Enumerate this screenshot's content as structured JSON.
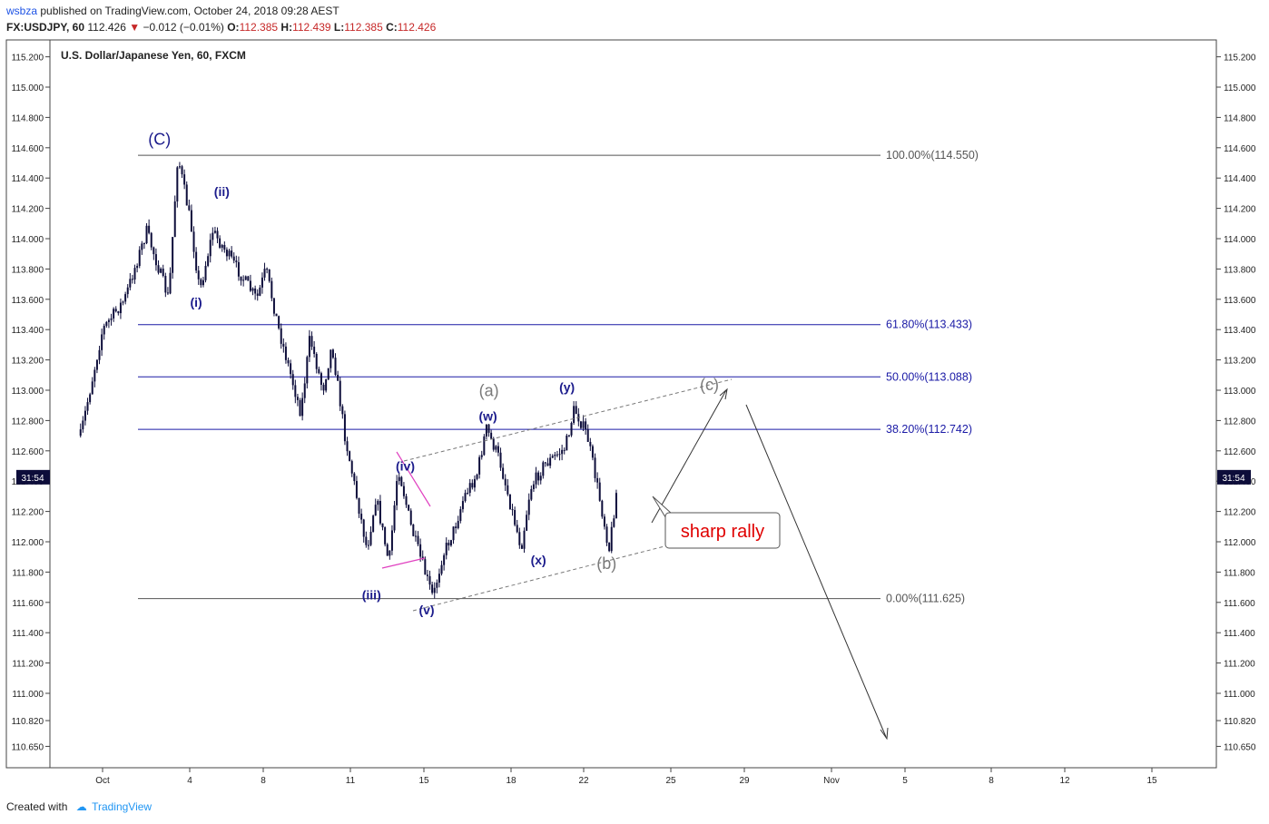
{
  "header": {
    "publisher": "wsbza",
    "published_text": "published on TradingView.com, October 24, 2018 09:28 AEST",
    "symbol": "FX:USDJPY, 60",
    "last": "112.426",
    "change": "−0.012 (−0.01%)",
    "open_label": "O:",
    "open": "112.385",
    "high_label": "H:",
    "high": "112.439",
    "low_label": "L:",
    "low": "112.385",
    "close_label": "C:",
    "close": "112.426"
  },
  "footer": {
    "created_with": "Created with",
    "brand": "TradingView"
  },
  "colors": {
    "candle": "#0d0d3a",
    "fib_grey": "#555555",
    "fib_blue": "#1a1aa6",
    "label_blue": "#1c1c8c",
    "label_grey": "#7a7a7a",
    "triangle": "#e040c0",
    "callout_red": "#e00000"
  },
  "chart_data": {
    "type": "candlestick",
    "title": "U.S. Dollar/Japanese Yen, 60, FXCM",
    "ylim": [
      110.55,
      115.35
    ],
    "y_ticks": [
      "115.200",
      "115.000",
      "114.800",
      "114.600",
      "114.400",
      "114.200",
      "114.000",
      "113.800",
      "113.600",
      "113.400",
      "113.200",
      "113.000",
      "112.800",
      "112.600",
      "112.400",
      "112.200",
      "112.000",
      "111.800",
      "111.600",
      "111.400",
      "111.200",
      "111.000",
      "110.820",
      "110.650"
    ],
    "x_ticks": [
      "Oct",
      "4",
      "8",
      "11",
      "15",
      "18",
      "22",
      "25",
      "29",
      "Nov",
      "5",
      "8",
      "12",
      "15"
    ],
    "price_tag": "31:54",
    "price_tag_value": 112.426,
    "swing_points": [
      {
        "x": "Sep 30",
        "y": 112.7
      },
      {
        "x": "Oct 1",
        "y": 113.4
      },
      {
        "x": "Oct 2",
        "y": 113.6
      },
      {
        "x": "Oct 3",
        "y": 114.05
      },
      {
        "x": "Oct 4",
        "y": 113.6
      },
      {
        "x": "Oct 4",
        "y": 114.55
      },
      {
        "x": "Oct 5",
        "y": 114.1
      },
      {
        "x": "Oct 5",
        "y": 113.65
      },
      {
        "x": "Oct 6",
        "y": 114.05
      },
      {
        "x": "Oct 8",
        "y": 113.6
      },
      {
        "x": "Oct 8",
        "y": 113.8
      },
      {
        "x": "Oct 9",
        "y": 113.4
      },
      {
        "x": "Oct 10",
        "y": 112.85
      },
      {
        "x": "Oct 10",
        "y": 113.35
      },
      {
        "x": "Oct 11",
        "y": 113.0
      },
      {
        "x": "Oct 11",
        "y": 113.3
      },
      {
        "x": "Oct 12",
        "y": 112.7
      },
      {
        "x": "Oct 13",
        "y": 111.95
      },
      {
        "x": "Oct 13",
        "y": 112.3
      },
      {
        "x": "Oct 14",
        "y": 111.85
      },
      {
        "x": "Oct 14",
        "y": 112.5
      },
      {
        "x": "Oct 15",
        "y": 112.1
      },
      {
        "x": "Oct 15",
        "y": 111.9
      },
      {
        "x": "Oct 16",
        "y": 111.63
      },
      {
        "x": "Oct 16",
        "y": 111.9
      },
      {
        "x": "Oct 17",
        "y": 112.1
      },
      {
        "x": "Oct 17",
        "y": 112.3
      },
      {
        "x": "Oct 18",
        "y": 112.45
      },
      {
        "x": "Oct 18",
        "y": 112.75
      },
      {
        "x": "Oct 19",
        "y": 112.55
      },
      {
        "x": "Oct 20",
        "y": 111.96
      },
      {
        "x": "Oct 20",
        "y": 112.35
      },
      {
        "x": "Oct 21",
        "y": 112.5
      },
      {
        "x": "Oct 22",
        "y": 112.62
      },
      {
        "x": "Oct 22",
        "y": 112.88
      },
      {
        "x": "Oct 23",
        "y": 112.7
      },
      {
        "x": "Oct 23",
        "y": 112.4
      },
      {
        "x": "Oct 24",
        "y": 111.95
      },
      {
        "x": "Oct 24",
        "y": 112.43
      }
    ],
    "fib_levels": [
      {
        "label": "100.00%(114.550)",
        "value": 114.55,
        "color": "grey"
      },
      {
        "label": "61.80%(113.433)",
        "value": 113.433,
        "color": "blue"
      },
      {
        "label": "50.00%(113.088)",
        "value": 113.088,
        "color": "blue"
      },
      {
        "label": "38.20%(112.742)",
        "value": 112.742,
        "color": "blue"
      },
      {
        "label": "0.00%(111.625)",
        "value": 111.625,
        "color": "grey"
      }
    ],
    "wave_labels": [
      {
        "text": "(C)",
        "x": "Oct 4",
        "y": 114.62,
        "color": "blue"
      },
      {
        "text": "(i)",
        "x": "Oct 5",
        "y": 113.55,
        "color": "blue"
      },
      {
        "text": "(ii)",
        "x": "Oct 6",
        "y": 114.28,
        "color": "blue"
      },
      {
        "text": "(iii)",
        "x": "Oct 13",
        "y": 111.62,
        "color": "blue"
      },
      {
        "text": "(iv)",
        "x": "Oct 14",
        "y": 112.47,
        "color": "blue"
      },
      {
        "text": "(v)",
        "x": "Oct 16",
        "y": 111.52,
        "color": "blue"
      },
      {
        "text": "(a)",
        "x": "Oct 18",
        "y": 112.96,
        "color": "grey"
      },
      {
        "text": "(w)",
        "x": "Oct 18",
        "y": 112.8,
        "color": "blue"
      },
      {
        "text": "(x)",
        "x": "Oct 20",
        "y": 111.85,
        "color": "blue"
      },
      {
        "text": "(y)",
        "x": "Oct 22",
        "y": 112.99,
        "color": "blue"
      },
      {
        "text": "(b)",
        "x": "Oct 24",
        "y": 111.82,
        "color": "grey"
      },
      {
        "text": "(c)",
        "x": "Oct 29",
        "y": 113.0,
        "color": "grey"
      }
    ],
    "annotations": {
      "callout": "sharp rally"
    }
  }
}
